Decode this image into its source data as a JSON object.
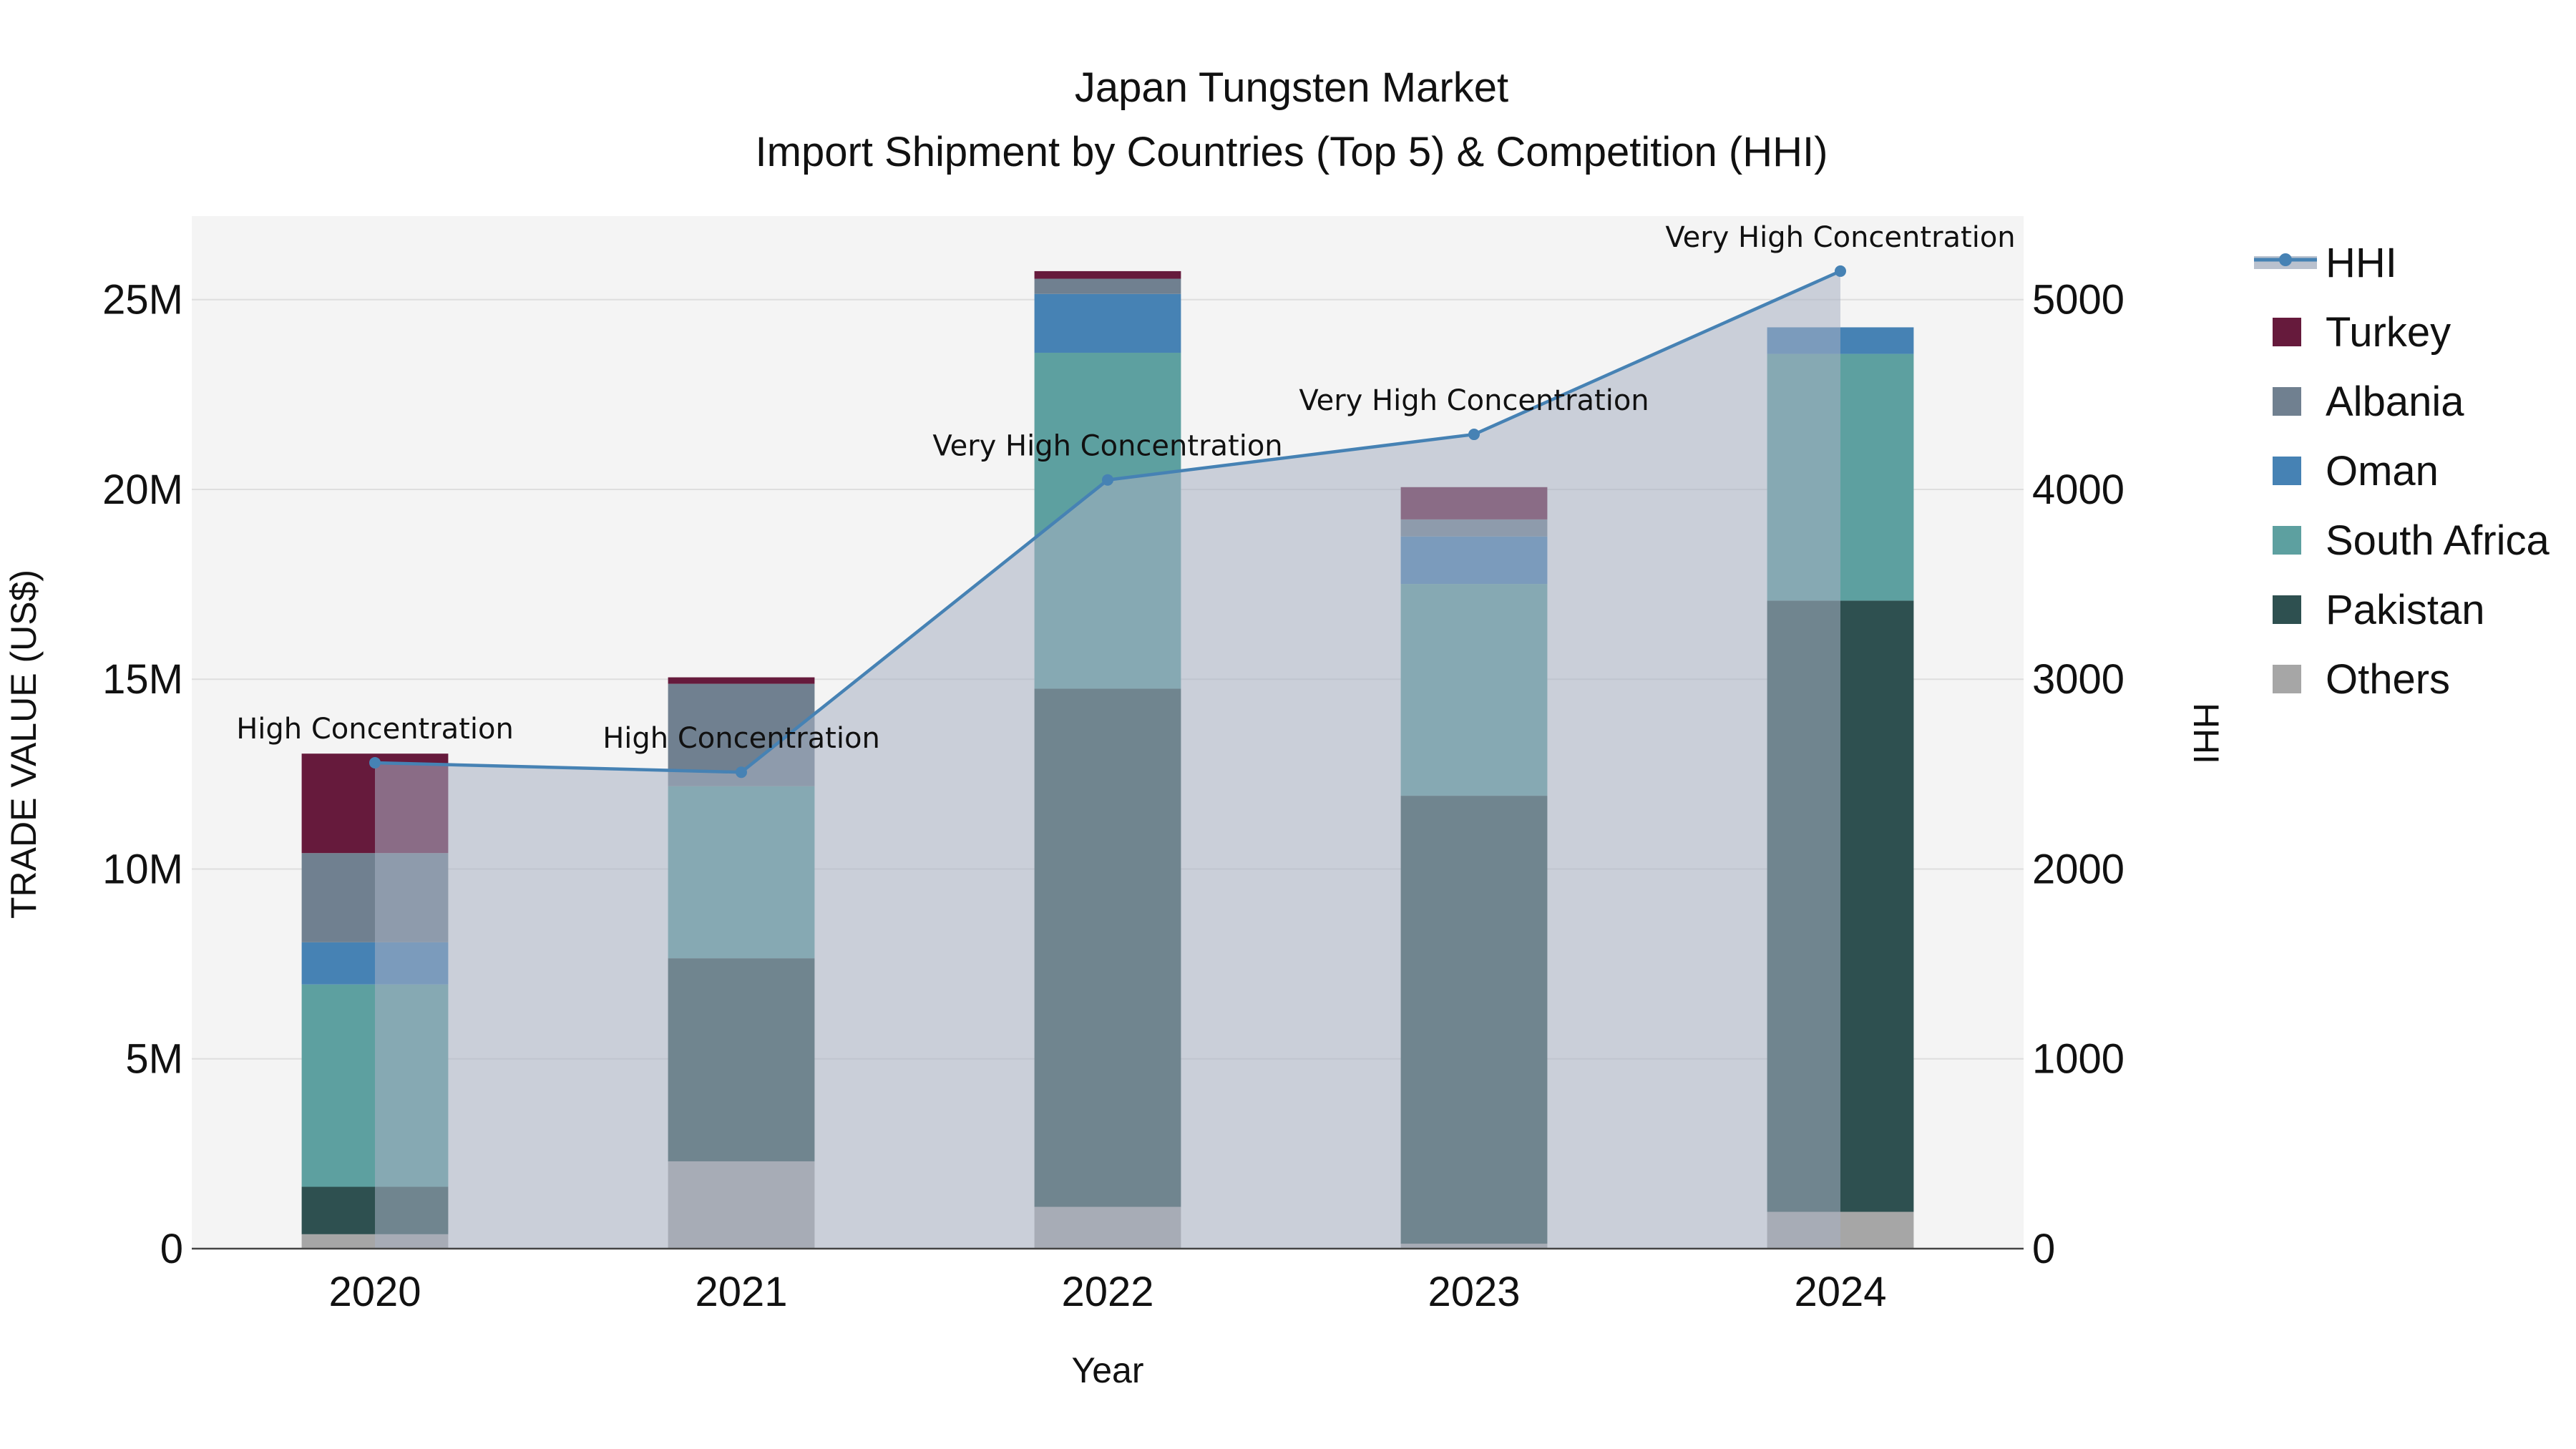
{
  "chart_data": {
    "type": "bar",
    "title": "Japan Tungsten Market",
    "subtitle": "Import Shipment by Countries (Top 5) & Competition (HHI)",
    "xlabel": "Year",
    "ylabel": "TRADE VALUE (US$)",
    "y2label": "HHI",
    "categories": [
      "2020",
      "2021",
      "2022",
      "2023",
      "2024"
    ],
    "ylim": [
      0,
      27200000
    ],
    "y_ticks": [
      0,
      5000000,
      10000000,
      15000000,
      20000000,
      25000000
    ],
    "y_tick_labels": [
      "0",
      "5M",
      "10M",
      "15M",
      "20M",
      "25M"
    ],
    "y2lim": [
      0,
      5440
    ],
    "y2_ticks": [
      0,
      1000,
      2000,
      3000,
      4000,
      5000
    ],
    "y2_tick_labels": [
      "0",
      "1000",
      "2000",
      "3000",
      "4000",
      "5000"
    ],
    "series": [
      {
        "name": "Others",
        "color": "#a6a6a6",
        "values": [
          380000,
          2300000,
          1100000,
          130000,
          970000
        ]
      },
      {
        "name": "Pakistan",
        "color": "#2e5050",
        "values": [
          1250000,
          5350000,
          13650000,
          11800000,
          16100000
        ]
      },
      {
        "name": "South Africa",
        "color": "#5da0a0",
        "values": [
          5330000,
          4530000,
          8850000,
          5580000,
          6500000
        ]
      },
      {
        "name": "Oman",
        "color": "#4682b4",
        "values": [
          1110000,
          0,
          1550000,
          1250000,
          700000
        ]
      },
      {
        "name": "Albania",
        "color": "#708090",
        "values": [
          2350000,
          2700000,
          400000,
          450000,
          0
        ]
      },
      {
        "name": "Turkey",
        "color": "#661a3c",
        "values": [
          2620000,
          170000,
          200000,
          850000,
          0
        ]
      }
    ],
    "hhi": {
      "name": "HHI",
      "color": "#4682b4",
      "fill_color": "#a7b1c2",
      "values": [
        2560,
        2510,
        4050,
        4290,
        5150
      ],
      "labels": [
        "High Concentration",
        "High Concentration",
        "Very High Concentration",
        "Very High Concentration",
        "Very High Concentration"
      ]
    },
    "legend_order": [
      "HHI",
      "Turkey",
      "Albania",
      "Oman",
      "South Africa",
      "Pakistan",
      "Others"
    ],
    "legend_position": "right",
    "plot_background": "#f4f4f4",
    "grid": true
  }
}
